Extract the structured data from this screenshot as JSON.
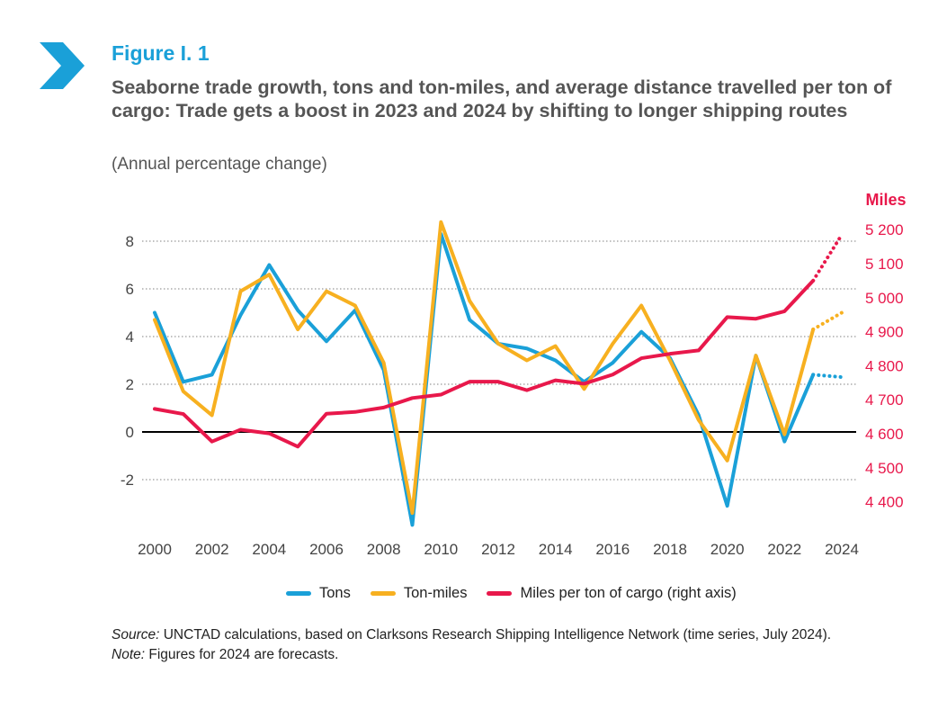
{
  "header": {
    "figure_label": "Figure I. 1",
    "title": "Seaborne trade growth, tons and ton-miles, and average distance travelled per ton of cargo: Trade gets a boost in 2023 and 2024 by shifting to longer shipping routes",
    "subtitle": "(Annual percentage change)"
  },
  "colors": {
    "accent": "#1aa0d8",
    "tons": "#1aa0d8",
    "ton_miles": "#f7b020",
    "miles": "#e8184b",
    "text": "#555555"
  },
  "footer": {
    "source_label": "Source:",
    "source_text": " UNCTAD calculations, based on Clarksons Research Shipping Intelligence Network (time series, July 2024).",
    "note_label": "Note:",
    "note_text": " Figures for 2024 are forecasts."
  },
  "chart_data": {
    "type": "line",
    "x": [
      2000,
      2001,
      2002,
      2003,
      2004,
      2005,
      2006,
      2007,
      2008,
      2009,
      2010,
      2011,
      2012,
      2013,
      2014,
      2015,
      2016,
      2017,
      2018,
      2019,
      2020,
      2021,
      2022,
      2023,
      2024
    ],
    "x_ticks": [
      "2000",
      "2002",
      "2004",
      "2006",
      "2008",
      "2010",
      "2012",
      "2014",
      "2016",
      "2018",
      "2020",
      "2022",
      "2024"
    ],
    "y_left_ticks": [
      "8",
      "6",
      "4",
      "2",
      "0",
      "-2"
    ],
    "y_right_label": "Miles",
    "y_right_ticks": [
      "5 200",
      "5 100",
      "5 000",
      "4 900",
      "4 800",
      "4 700",
      "4 600",
      "4 500",
      "4 400"
    ],
    "ylim_left": [
      -4,
      9
    ],
    "ylim_right": [
      4310,
      5280
    ],
    "forecast_from": 2023,
    "grid": "dotted horizontal",
    "series": [
      {
        "name": "Tons",
        "axis": "left",
        "color": "#1aa0d8",
        "values": [
          5.0,
          2.1,
          2.4,
          4.9,
          7.0,
          5.1,
          3.8,
          5.1,
          2.6,
          -3.9,
          8.3,
          4.7,
          3.7,
          3.5,
          3.0,
          2.1,
          2.9,
          4.2,
          3.1,
          0.7,
          -3.1,
          3.2,
          -0.4,
          2.4,
          2.3
        ]
      },
      {
        "name": "Ton-miles",
        "axis": "left",
        "color": "#f7b020",
        "values": [
          4.7,
          1.7,
          0.7,
          5.9,
          6.6,
          4.3,
          5.9,
          5.3,
          2.9,
          -3.4,
          8.8,
          5.5,
          3.7,
          3.0,
          3.6,
          1.8,
          3.7,
          5.3,
          3.0,
          0.5,
          -1.2,
          3.2,
          -0.1,
          4.3,
          5.0
        ]
      },
      {
        "name": "Miles per ton of cargo (right axis)",
        "axis": "right",
        "color": "#e8184b",
        "values": [
          4673,
          4658,
          4577,
          4612,
          4601,
          4562,
          4659,
          4664,
          4677,
          4705,
          4715,
          4753,
          4753,
          4728,
          4757,
          4747,
          4774,
          4822,
          4835,
          4845,
          4943,
          4938,
          4960,
          5050,
          5185
        ]
      }
    ]
  }
}
